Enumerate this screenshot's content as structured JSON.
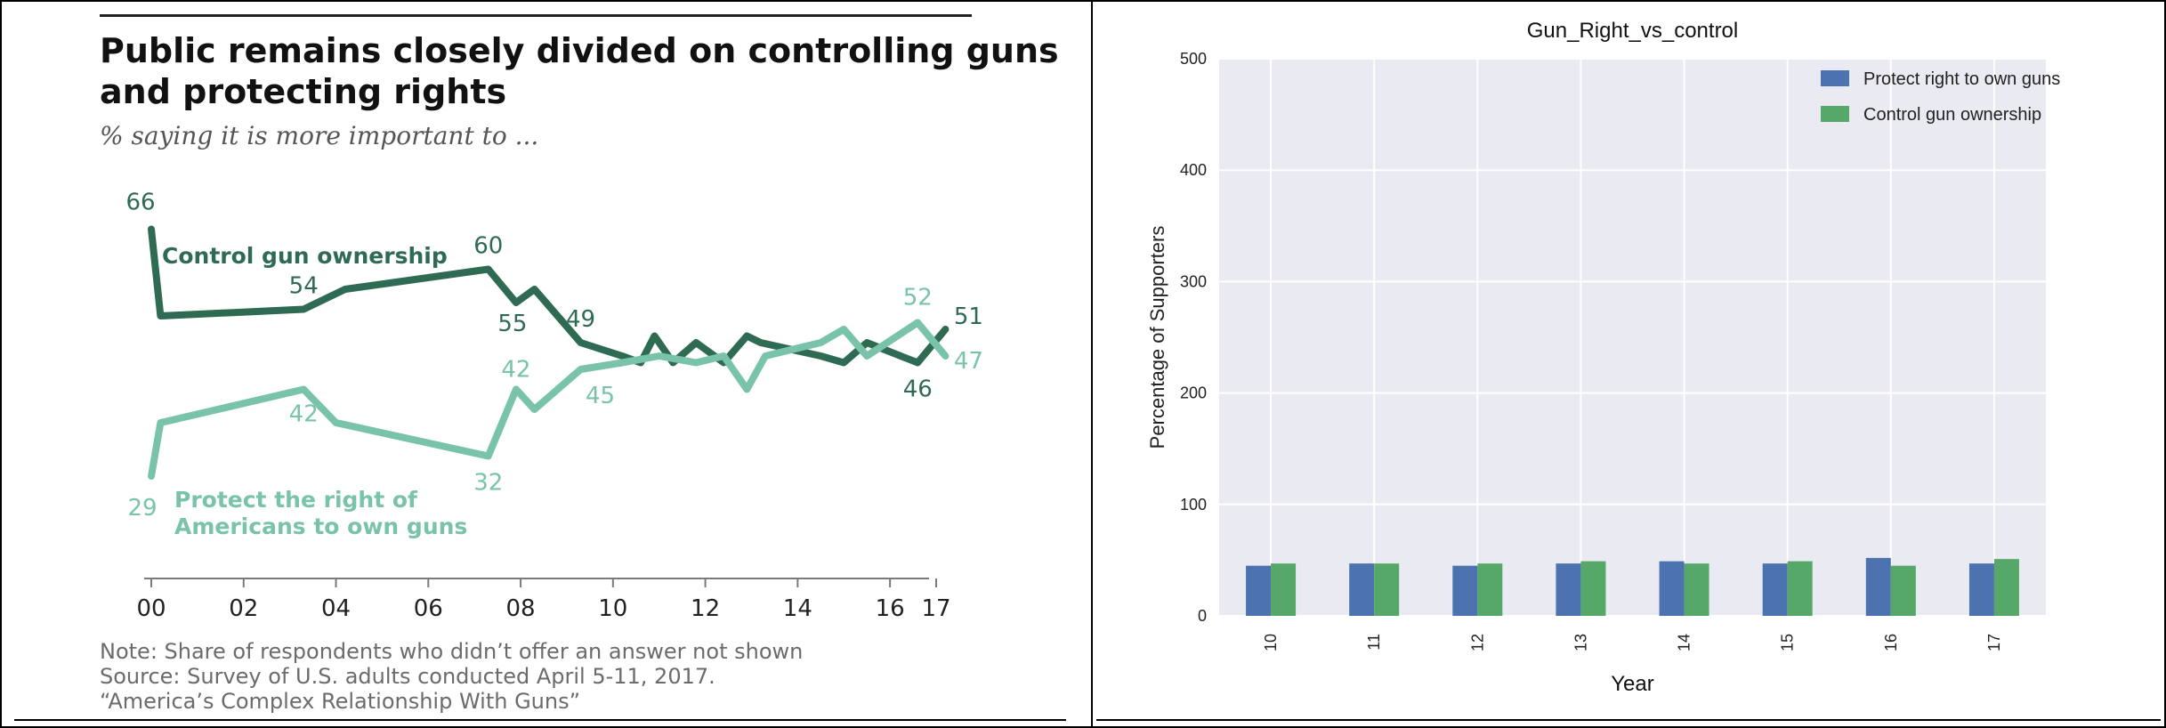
{
  "chart_data": [
    {
      "type": "line",
      "title": "Public remains closely divided on controlling guns and protecting rights",
      "subtitle": "% saying it is more important to ...",
      "x_tick_labels": [
        "00",
        "02",
        "04",
        "06",
        "08",
        "10",
        "12",
        "14",
        "16",
        "17"
      ],
      "xlim": [
        2000,
        2017
      ],
      "series": [
        {
          "name": "Control gun ownership",
          "color": "#2f6a52",
          "points": [
            [
              2000,
              66
            ],
            [
              2000.2,
              53
            ],
            [
              2003.3,
              54
            ],
            [
              2004.2,
              57
            ],
            [
              2007.3,
              60
            ],
            [
              2007.9,
              55
            ],
            [
              2008.3,
              57
            ],
            [
              2009.3,
              49
            ],
            [
              2010.2,
              47
            ],
            [
              2010.6,
              46
            ],
            [
              2010.9,
              50
            ],
            [
              2011.3,
              46
            ],
            [
              2011.8,
              49
            ],
            [
              2012.4,
              46
            ],
            [
              2012.9,
              50
            ],
            [
              2013.2,
              49
            ],
            [
              2014.5,
              47
            ],
            [
              2015.0,
              46
            ],
            [
              2015.5,
              49
            ],
            [
              2016.6,
              46
            ],
            [
              2017.2,
              51
            ]
          ],
          "labels": [
            {
              "x": 2000,
              "y": 66,
              "text": "66"
            },
            {
              "x": 2003.3,
              "y": 54,
              "text": "54"
            },
            {
              "x": 2007.3,
              "y": 60,
              "text": "60"
            },
            {
              "x": 2007.9,
              "y": 55,
              "text": "55"
            },
            {
              "x": 2009.3,
              "y": 49,
              "text": "49"
            },
            {
              "x": 2016.6,
              "y": 46,
              "text": "46"
            },
            {
              "x": 2017.2,
              "y": 51,
              "text": "51"
            }
          ],
          "series_label": "Control gun ownership"
        },
        {
          "name": "Protect the right of Americans to own guns",
          "color": "#79c3aa",
          "points": [
            [
              2000,
              29
            ],
            [
              2000.2,
              37
            ],
            [
              2003.3,
              42
            ],
            [
              2004.0,
              37
            ],
            [
              2007.3,
              32
            ],
            [
              2007.9,
              42
            ],
            [
              2008.3,
              39
            ],
            [
              2009.3,
              45
            ],
            [
              2010.2,
              46
            ],
            [
              2011.0,
              47
            ],
            [
              2011.8,
              46
            ],
            [
              2012.4,
              47
            ],
            [
              2012.9,
              42
            ],
            [
              2013.3,
              47
            ],
            [
              2014.5,
              49
            ],
            [
              2015.0,
              51
            ],
            [
              2015.5,
              47
            ],
            [
              2016.6,
              52
            ],
            [
              2017.2,
              47
            ]
          ],
          "labels": [
            {
              "x": 2000,
              "y": 29,
              "text": "29"
            },
            {
              "x": 2003.3,
              "y": 42,
              "text": "42"
            },
            {
              "x": 2007.3,
              "y": 32,
              "text": "32"
            },
            {
              "x": 2007.9,
              "y": 42,
              "text": "42"
            },
            {
              "x": 2009.3,
              "y": 45,
              "text": "45"
            },
            {
              "x": 2016.6,
              "y": 52,
              "text": "52"
            },
            {
              "x": 2017.2,
              "y": 47,
              "text": "47"
            }
          ],
          "series_label": [
            "Protect  the right of",
            "Americans to own guns"
          ]
        }
      ],
      "note": [
        "Note: Share of respondents who didn’t offer an answer not shown",
        "Source: Survey of U.S. adults conducted April 5-11, 2017.",
        "“America’s Complex Relationship With Guns”"
      ],
      "source_line": "Source: Survey of U.S. adults conducted April 5-11, 2017.",
      "report_line": "“America’s Complex Relationship With Guns”"
    },
    {
      "type": "bar",
      "title": "Gun_Right_vs_control",
      "xlabel": "Year",
      "ylabel": "Percentage of Supporters",
      "ylim": [
        0,
        500
      ],
      "yticks": [
        "0",
        "100",
        "200",
        "300",
        "400",
        "500"
      ],
      "categories": [
        "10",
        "11",
        "12",
        "13",
        "14",
        "15",
        "16",
        "17"
      ],
      "series": [
        {
          "name": "Protect right to own guns",
          "color": "#4c72b0",
          "values": [
            45,
            47,
            45,
            47,
            49,
            47,
            52,
            47
          ]
        },
        {
          "name": "Control gun ownership",
          "color": "#55a868",
          "values": [
            47,
            47,
            47,
            49,
            47,
            49,
            45,
            51
          ]
        }
      ],
      "grid": true,
      "background": "#eaeaf2",
      "legend_position": "top-right",
      "tick_label_rotation": "vertical"
    }
  ]
}
